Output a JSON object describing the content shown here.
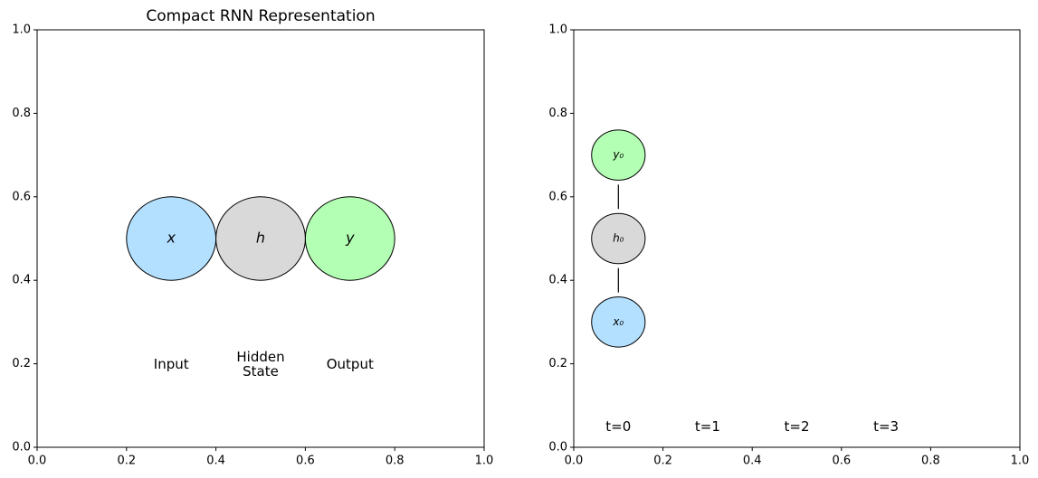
{
  "chart_data": [
    {
      "type": "diagram",
      "title": "Compact RNN Representation",
      "xlim": [
        0,
        1
      ],
      "ylim": [
        0,
        1
      ],
      "xticks": [
        {
          "value": 0,
          "label": "0.0"
        },
        0.2,
        0.4,
        0.6,
        0.8,
        {
          "value": 1,
          "label": "1.0"
        }
      ],
      "yticks": [
        {
          "value": 0,
          "label": "0.0"
        },
        0.2,
        0.4,
        0.6,
        0.8,
        {
          "value": 1,
          "label": "1.0"
        }
      ],
      "nodes": [
        {
          "label": "x",
          "x": 0.3,
          "y": 0.5,
          "r": 0.1,
          "color": "#b3e0ff"
        },
        {
          "label": "h",
          "x": 0.5,
          "y": 0.5,
          "r": 0.1,
          "color": "#d9d9d9"
        },
        {
          "label": "y",
          "x": 0.7,
          "y": 0.5,
          "r": 0.1,
          "color": "#b3ffb3"
        }
      ],
      "chain": false,
      "annotations": [
        {
          "text": "Input",
          "x": 0.3,
          "y": 0.2
        },
        {
          "text": "Hidden\nState",
          "x": 0.5,
          "y": 0.2
        },
        {
          "text": "Output",
          "x": 0.7,
          "y": 0.2
        }
      ]
    },
    {
      "type": "diagram",
      "xlim": [
        0,
        1
      ],
      "ylim": [
        0,
        1
      ],
      "xticks": [
        {
          "value": 0,
          "label": "0.0"
        },
        0.2,
        0.4,
        0.6,
        0.8,
        {
          "value": 1,
          "label": "1.0"
        }
      ],
      "yticks": [
        {
          "value": 0,
          "label": "0.0"
        },
        0.2,
        0.4,
        0.6,
        0.8,
        {
          "value": 1,
          "label": "1.0"
        }
      ],
      "nodes": [
        {
          "label": "x₀",
          "x": 0.1,
          "y": 0.3,
          "r": 0.06,
          "color": "#b3e0ff"
        },
        {
          "label": "h₀",
          "x": 0.1,
          "y": 0.5,
          "r": 0.06,
          "color": "#d9d9d9"
        },
        {
          "label": "y₀",
          "x": 0.1,
          "y": 0.7,
          "r": 0.06,
          "color": "#b3ffb3"
        }
      ],
      "chain": true,
      "annotations": [
        {
          "text": "t=0",
          "x": 0.1,
          "y": 0.05
        },
        {
          "text": "t=1",
          "x": 0.3,
          "y": 0.05
        },
        {
          "text": "t=2",
          "x": 0.5,
          "y": 0.05
        },
        {
          "text": "t=3",
          "x": 0.7,
          "y": 0.05
        }
      ]
    }
  ]
}
